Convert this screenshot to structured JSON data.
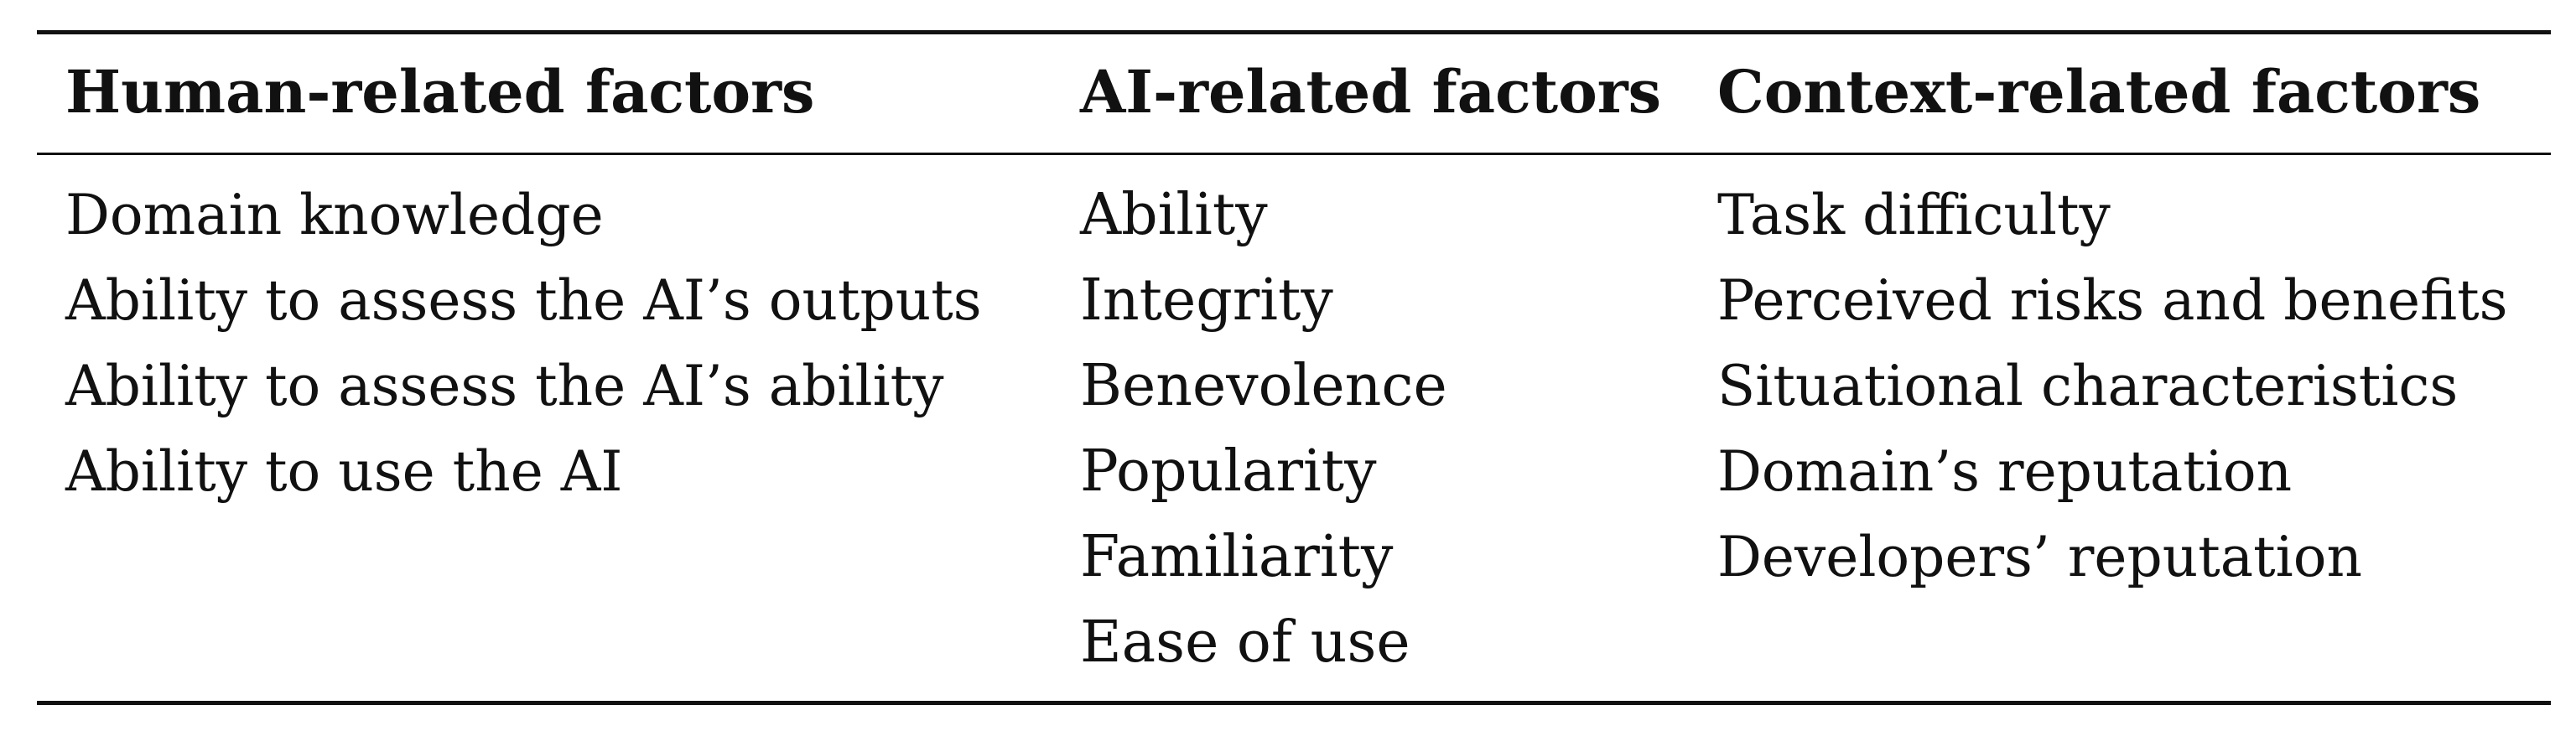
{
  "table": {
    "columns": [
      {
        "header": "Human-related factors",
        "cells": [
          "Domain knowledge",
          "Ability to assess the AI’s outputs",
          "Ability to assess the AI’s ability",
          "Ability to use the AI"
        ]
      },
      {
        "header": "AI-related factors",
        "cells": [
          "Ability",
          "Integrity",
          "Benevolence",
          "Popularity",
          "Familiarity",
          "Ease of use"
        ]
      },
      {
        "header": "Context-related factors",
        "cells": [
          "Task difficulty",
          "Perceived risks and benefits",
          "Situational characteristics",
          "Domain’s reputation",
          "Developers’ reputation"
        ]
      }
    ]
  }
}
